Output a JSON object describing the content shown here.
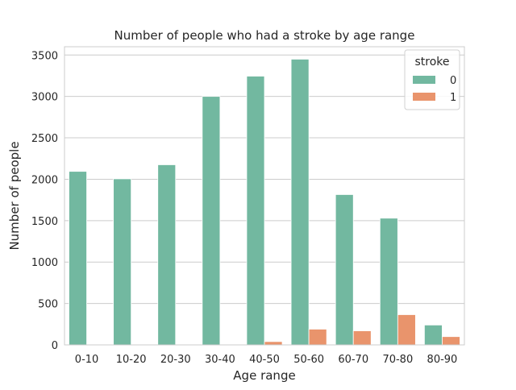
{
  "chart_data": {
    "type": "bar",
    "title": "Number of people who had a stroke by age range",
    "xlabel": "Age range",
    "ylabel": "Number of people",
    "categories": [
      "0-10",
      "10-20",
      "20-30",
      "30-40",
      "40-50",
      "50-60",
      "60-70",
      "70-80",
      "80-90"
    ],
    "series": [
      {
        "name": "0",
        "color": "#72b8a0",
        "values": [
          2095,
          2005,
          2175,
          3000,
          3245,
          3450,
          1815,
          1530,
          240
        ]
      },
      {
        "name": "1",
        "color": "#e9946c",
        "values": [
          2,
          0,
          0,
          5,
          40,
          190,
          170,
          365,
          100
        ]
      }
    ],
    "ylim": [
      0,
      3600
    ],
    "yticks": [
      0,
      500,
      1000,
      1500,
      2000,
      2500,
      3000,
      3500
    ],
    "grid": true,
    "legend": {
      "title": "stroke",
      "placement": "top-right"
    }
  }
}
